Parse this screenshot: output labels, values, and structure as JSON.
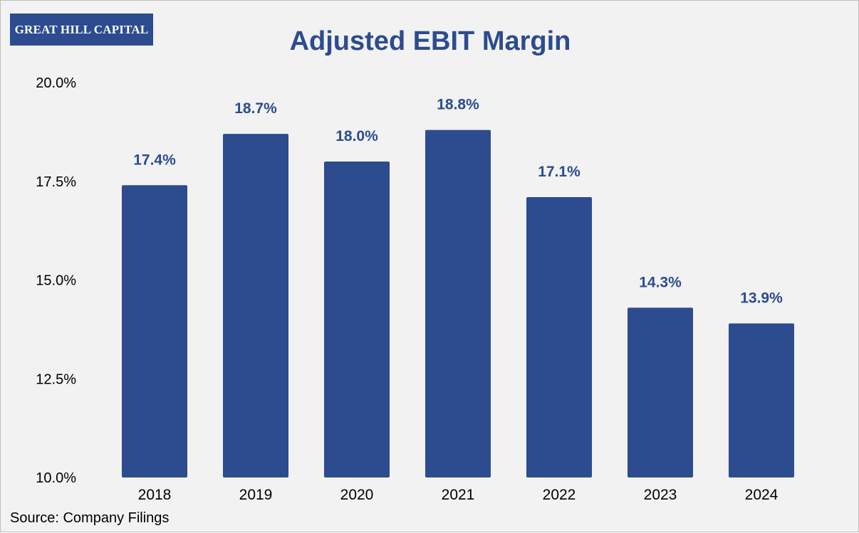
{
  "logo": {
    "text": "GREAT HILL CAPITAL"
  },
  "source_note": "Source: Company Filings",
  "colors": {
    "bar": "#2c4c8f",
    "label": "#2c4c8f",
    "background": "#f2f2f2"
  },
  "chart_data": {
    "type": "bar",
    "title": "Adjusted EBIT Margin",
    "xlabel": "",
    "ylabel": "",
    "categories": [
      "2018",
      "2019",
      "2020",
      "2021",
      "2022",
      "2023",
      "2024"
    ],
    "values": [
      17.4,
      18.7,
      18.0,
      18.8,
      17.1,
      14.3,
      13.9
    ],
    "data_labels": [
      "17.4%",
      "18.7%",
      "18.0%",
      "18.8%",
      "17.1%",
      "14.3%",
      "13.9%"
    ],
    "ylim": [
      10.0,
      20.0
    ],
    "yticks": [
      10.0,
      12.5,
      15.0,
      17.5,
      20.0
    ],
    "ytick_labels": [
      "10.0%",
      "12.5%",
      "15.0%",
      "17.5%",
      "20.0%"
    ],
    "grid": false,
    "legend": "none"
  }
}
